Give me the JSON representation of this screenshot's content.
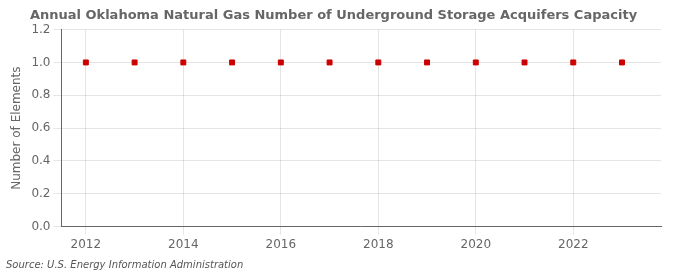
{
  "chart_data": {
    "type": "scatter",
    "title": "Annual Oklahoma Natural Gas Number of Underground Storage Acquifers Capacity",
    "ylabel": "Number of Elements",
    "source": "Source: U.S. Energy Information Administration",
    "x": [
      2012,
      2013,
      2014,
      2015,
      2016,
      2017,
      2018,
      2019,
      2020,
      2021,
      2022,
      2023
    ],
    "values": [
      1,
      1,
      1,
      1,
      1,
      1,
      1,
      1,
      1,
      1,
      1,
      1
    ],
    "color": "#cc0000",
    "marker": "square",
    "xlim": [
      2011.5,
      2023.8
    ],
    "ylim": [
      0.0,
      1.2
    ],
    "xticks": [
      2012,
      2014,
      2016,
      2018,
      2020,
      2022
    ],
    "yticks": [
      {
        "value": 0.0,
        "label": "0.0"
      },
      0.2,
      0.4,
      0.6,
      0.8,
      {
        "value": 1.0,
        "label": "1.0"
      },
      1.2
    ],
    "grid": true
  }
}
